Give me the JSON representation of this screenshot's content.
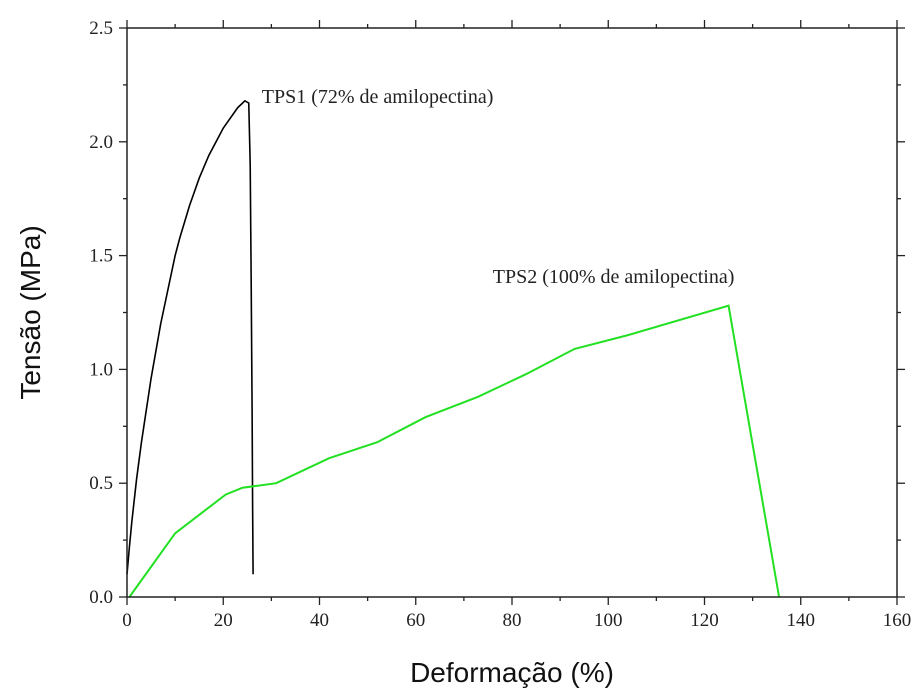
{
  "chart_data": {
    "type": "line",
    "xlabel": "Deformação (%)",
    "ylabel": "Tensão (MPa)",
    "xlim": [
      0,
      160
    ],
    "ylim": [
      0,
      2.5
    ],
    "xticks": [
      0,
      20,
      40,
      60,
      80,
      100,
      120,
      140,
      160
    ],
    "yticks": [
      0.0,
      0.5,
      1.0,
      1.5,
      2.0,
      2.5
    ],
    "xtick_labels": [
      "0",
      "20",
      "40",
      "60",
      "80",
      "100",
      "120",
      "140",
      "160"
    ],
    "ytick_labels": [
      "0.0",
      "0.5",
      "1.0",
      "1.5",
      "2.0",
      "2.5"
    ],
    "grid": false,
    "legend": "none",
    "series": [
      {
        "color": "#000000",
        "x": [
          0,
          0.5,
          1,
          2,
          3,
          4,
          5,
          6,
          7,
          8,
          9,
          10,
          11,
          12,
          13,
          14,
          15,
          16,
          17,
          18,
          19,
          20,
          21,
          22,
          23,
          24,
          24.5,
          25.3,
          25.6,
          25.8,
          26.0,
          26.1,
          26.2
        ],
        "y": [
          0.1,
          0.22,
          0.33,
          0.52,
          0.68,
          0.82,
          0.96,
          1.08,
          1.2,
          1.3,
          1.4,
          1.5,
          1.58,
          1.65,
          1.72,
          1.78,
          1.84,
          1.89,
          1.94,
          1.98,
          2.02,
          2.06,
          2.09,
          2.12,
          2.15,
          2.17,
          2.18,
          2.17,
          1.9,
          1.4,
          0.8,
          0.4,
          0.1
        ]
      },
      {
        "color": "#22e022",
        "x": [
          0.5,
          10,
          20.5,
          24,
          31,
          42,
          52,
          62,
          73,
          83,
          93,
          104,
          125,
          135.5
        ],
        "y": [
          0.0,
          0.28,
          0.45,
          0.48,
          0.5,
          0.61,
          0.68,
          0.79,
          0.88,
          0.98,
          1.09,
          1.15,
          1.28,
          0.0
        ]
      }
    ],
    "annotations": [
      {
        "text": "TPS1 (72% de amilopectina)",
        "x": 28,
        "y": 2.17
      },
      {
        "text": "TPS2 (100% de amilopectina)",
        "x": 76,
        "y": 1.38
      }
    ]
  }
}
